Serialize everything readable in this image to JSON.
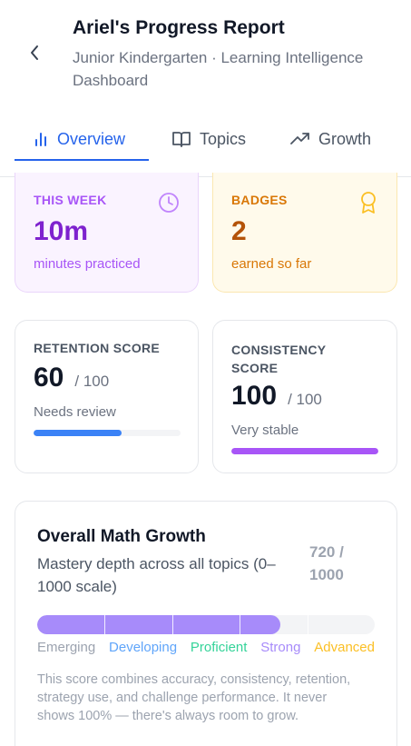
{
  "header": {
    "title": "Ariel's Progress Report",
    "subtitle": "Junior Kindergarten · Learning Intelligence Dashboard",
    "back_icon": "chevron-left-icon"
  },
  "tabs": [
    {
      "label": "Overview",
      "icon": "bar-chart-icon",
      "active": true
    },
    {
      "label": "Topics",
      "icon": "book-open-icon",
      "active": false
    },
    {
      "label": "Growth",
      "icon": "trending-up-icon",
      "active": false
    }
  ],
  "this_week": {
    "label": "THIS WEEK",
    "value": "10m",
    "caption": "minutes practiced",
    "icon": "clock-icon",
    "color": "#7e22ce"
  },
  "badges": {
    "label": "BADGES",
    "value": "2",
    "caption": "earned so far",
    "icon": "award-icon",
    "color": "#b45309"
  },
  "retention": {
    "label": "RETENTION SCORE",
    "value": "60",
    "denominator": "/ 100",
    "status": "Needs review",
    "progress": 0.6,
    "color": "#3b82f6"
  },
  "consistency": {
    "label": "CONSISTENCY SCORE",
    "value": "100",
    "denominator": "/ 100",
    "status": "Very stable",
    "progress": 1.0,
    "color": "#a855f7"
  },
  "growth": {
    "title": "Overall Math Growth",
    "subtitle": "Mastery depth across all topics (0–1000 scale)",
    "score": "720 / 1000",
    "progress": 0.72,
    "levels": [
      {
        "label": "Emerging",
        "color": "#9ca3af"
      },
      {
        "label": "Developing",
        "color": "#60a5fa"
      },
      {
        "label": "Proficient",
        "color": "#34d399"
      },
      {
        "label": "Strong",
        "color": "#a78bfa"
      },
      {
        "label": "Advanced",
        "color": "#fbbf24"
      }
    ],
    "note": "This score combines accuracy, consistency, retention, strategy use, and challenge performance. It never shows 100% — there's always room to grow."
  }
}
